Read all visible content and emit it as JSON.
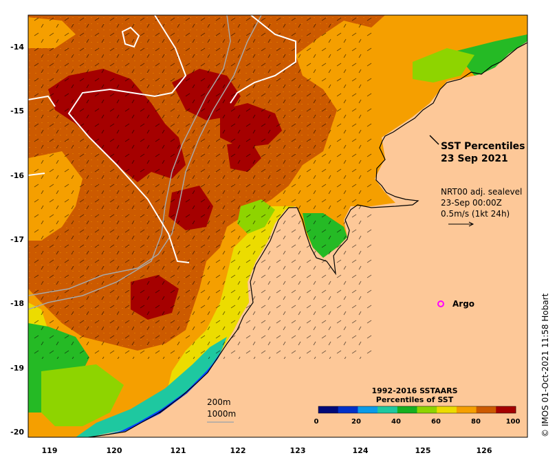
{
  "map": {
    "title_line1": "SST Percentiles",
    "title_line2": "23 Sep 2021",
    "current_source": "NRT00 adj. sealevel",
    "current_time": "23-Sep 00:00Z",
    "current_scale": "0.5m/s (1kt 24h)",
    "argo_label": "Argo",
    "isobath_200": "200m",
    "isobath_1000": "1000m",
    "copyright": "© IMOS 01-Oct-2021 11:58 Hobart",
    "lon_ticks": [
      "119",
      "120",
      "121",
      "122",
      "123",
      "124",
      "125",
      "126"
    ],
    "lat_ticks": [
      "-14",
      "-15",
      "-16",
      "-17",
      "-18",
      "-19",
      "-20"
    ],
    "colors": {
      "land": "#fdc898",
      "argo_marker": "#ff00ff",
      "p95": "#a50000",
      "p90": "#cc5a00",
      "p80": "#f59f00",
      "p70": "#ecdc00",
      "p60": "#8ed400",
      "p50": "#25ba25",
      "p40": "#1ec8a0",
      "p30": "#0a9be8",
      "p20": "#0040ff",
      "p10": "#000d80"
    }
  },
  "legend": {
    "title_line1": "1992-2016 SSTAARS",
    "title_line2": "Percentiles of SST",
    "ticks": [
      "0",
      "20",
      "40",
      "60",
      "80",
      "100"
    ],
    "bins": [
      "#000a78",
      "#0030c8",
      "#0a9be8",
      "#1ec8a0",
      "#16b020",
      "#8ed400",
      "#ecdc00",
      "#f59f00",
      "#cc5a00",
      "#a50000"
    ]
  }
}
